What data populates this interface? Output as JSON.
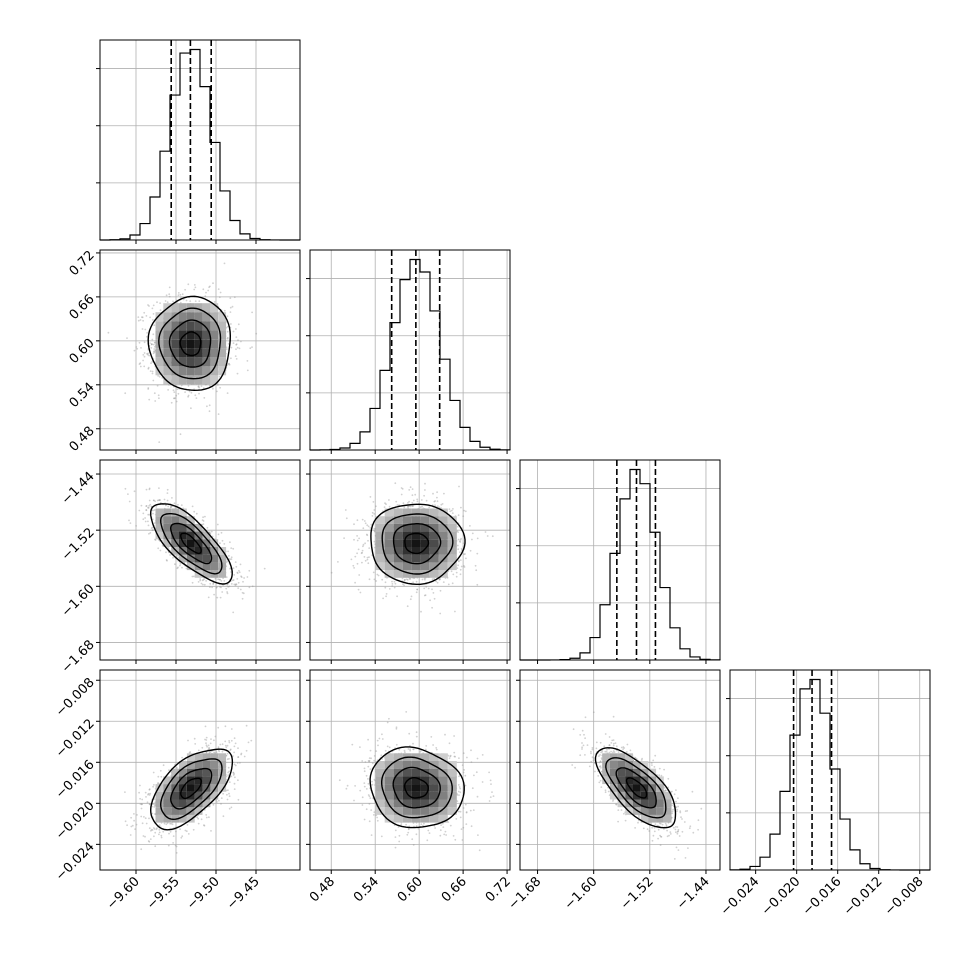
{
  "chart_data": {
    "type": "corner",
    "parameters": [
      {
        "ticks": [
          "-9.60",
          "-9.55",
          "-9.50",
          "-9.45"
        ],
        "tick_values": [
          -9.6,
          -9.55,
          -9.5,
          -9.45
        ],
        "lim": [
          -9.645,
          -9.395
        ],
        "mean": -9.5315,
        "sigma": 0.0255,
        "quantiles": [
          -9.556,
          -9.532,
          -9.506
        ]
      },
      {
        "ticks": [
          "0.48",
          "0.54",
          "0.60",
          "0.66",
          "0.72"
        ],
        "tick_values": [
          0.48,
          0.54,
          0.6,
          0.66,
          0.72
        ],
        "lim": [
          0.451,
          0.724
        ],
        "mean": 0.596,
        "sigma": 0.032,
        "quantiles": [
          0.5625,
          0.5955,
          0.628
        ]
      },
      {
        "ticks": [
          "-1.68",
          "-1.60",
          "-1.52",
          "-1.44"
        ],
        "tick_values": [
          -1.68,
          -1.6,
          -1.52,
          -1.44
        ],
        "lim": [
          -1.705,
          -1.42
        ],
        "mean": -1.5385,
        "sigma": 0.0285,
        "quantiles": [
          -1.567,
          -1.539,
          -1.512
        ]
      },
      {
        "ticks": [
          "-0.024",
          "-0.020",
          "-0.016",
          "-0.012",
          "-0.008"
        ],
        "tick_values": [
          -0.024,
          -0.02,
          -0.016,
          -0.012,
          -0.008
        ],
        "lim": [
          -0.0265,
          -0.007
        ],
        "mean": -0.0185,
        "sigma": 0.00195,
        "quantiles": [
          -0.0203,
          -0.0185,
          -0.0166
        ]
      }
    ],
    "correlations": [
      [
        1.0,
        0.0,
        -0.75,
        0.6
      ],
      [
        0.0,
        1.0,
        0.0,
        -0.1
      ],
      [
        -0.75,
        0.0,
        1.0,
        -0.7
      ],
      [
        0.6,
        -0.1,
        -0.7,
        1.0
      ]
    ],
    "histogram_bins": 20,
    "contour_levels_sigma": [
      0.5,
      1.0,
      1.5,
      2.0
    ],
    "grid": true,
    "colors": {
      "line": "#000000",
      "grid": "#b0b0b0",
      "points": "#9a9a9a"
    }
  }
}
